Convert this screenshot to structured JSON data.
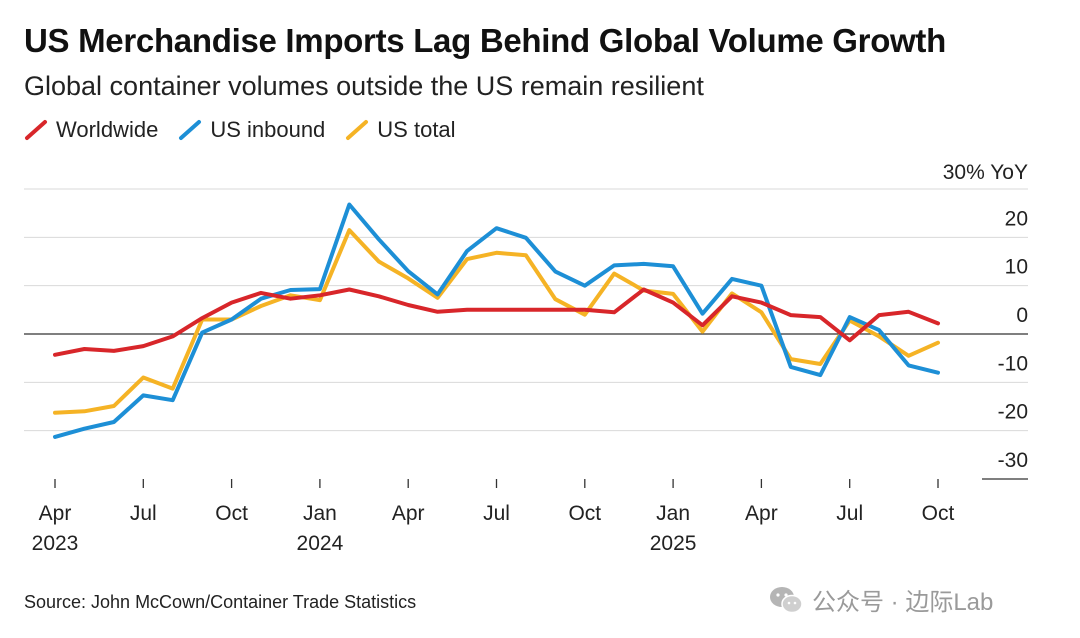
{
  "chart_data": {
    "type": "line",
    "title": "US Merchandise Imports Lag Behind Global Volume Growth",
    "subtitle": "Global container volumes outside the US remain resilient",
    "ylabel": "30% YoY",
    "ylim": [
      -30,
      30
    ],
    "yticks": [
      20,
      10,
      0,
      -10,
      -20,
      -30
    ],
    "ytick_labels": [
      "20",
      "10",
      "0",
      "-10",
      "-20",
      "-30"
    ],
    "x": [
      "Apr 2023",
      "May 2023",
      "Jun 2023",
      "Jul 2023",
      "Aug 2023",
      "Sep 2023",
      "Oct 2023",
      "Nov 2023",
      "Dec 2023",
      "Jan 2024",
      "Feb 2024",
      "Mar 2024",
      "Apr 2024",
      "May 2024",
      "Jun 2024",
      "Jul 2024",
      "Aug 2024",
      "Sep 2024",
      "Oct 2024",
      "Nov 2024",
      "Dec 2024",
      "Jan 2025",
      "Feb 2025",
      "Mar 2025",
      "Apr 2025",
      "May 2025",
      "Jun 2025",
      "Jul 2025",
      "Aug 2025",
      "Sep 2025",
      "Oct 2025"
    ],
    "xtick_labels": [
      {
        "label": "Apr",
        "year": "2023",
        "index": 0
      },
      {
        "label": "Jul",
        "year": "",
        "index": 3
      },
      {
        "label": "Oct",
        "year": "",
        "index": 6
      },
      {
        "label": "Jan",
        "year": "2024",
        "index": 9
      },
      {
        "label": "Apr",
        "year": "",
        "index": 12
      },
      {
        "label": "Jul",
        "year": "",
        "index": 15
      },
      {
        "label": "Oct",
        "year": "",
        "index": 18
      },
      {
        "label": "Jan",
        "year": "2025",
        "index": 21
      },
      {
        "label": "Apr",
        "year": "",
        "index": 24
      },
      {
        "label": "Jul",
        "year": "",
        "index": 27
      },
      {
        "label": "Oct",
        "year": "",
        "index": 30
      }
    ],
    "series": [
      {
        "name": "Worldwide",
        "color": "#d8262a",
        "values": [
          -4.3,
          -3.1,
          -3.5,
          -2.5,
          -0.5,
          3.3,
          6.5,
          8.5,
          7.3,
          8.0,
          9.2,
          7.8,
          6.0,
          4.6,
          5.0,
          5.0,
          5.0,
          5.0,
          5.0,
          4.5,
          9.2,
          6.5,
          1.8,
          7.8,
          6.5,
          3.9,
          3.5,
          -1.3,
          3.9,
          4.6,
          2.2
        ]
      },
      {
        "name": "US inbound",
        "color": "#1d8fd6",
        "values": [
          -21.3,
          -19.6,
          -18.2,
          -12.7,
          -13.7,
          0.3,
          3.0,
          7.3,
          9.1,
          9.3,
          26.8,
          19.6,
          13.0,
          8.2,
          17.2,
          21.9,
          19.9,
          12.9,
          10.0,
          14.2,
          14.5,
          14.0,
          4.2,
          11.4,
          10.0,
          -6.8,
          -8.5,
          3.5,
          0.8,
          -6.5,
          -8.0
        ]
      },
      {
        "name": "US total",
        "color": "#f5b325",
        "values": [
          -16.3,
          -16.0,
          -14.9,
          -9.0,
          -11.3,
          3.0,
          3.0,
          5.8,
          8.0,
          7.0,
          21.5,
          15.0,
          11.5,
          7.5,
          15.5,
          16.8,
          16.3,
          7.2,
          4.0,
          12.5,
          9.0,
          8.3,
          0.5,
          8.4,
          4.5,
          -5.2,
          -6.2,
          2.8,
          -0.5,
          -4.5,
          -1.8
        ]
      }
    ],
    "grid": true,
    "legend_position": "top-left"
  },
  "legend": [
    {
      "label": "Worldwide",
      "color": "#d8262a"
    },
    {
      "label": "US inbound",
      "color": "#1d8fd6"
    },
    {
      "label": "US total",
      "color": "#f5b325"
    }
  ],
  "source": "Source: John McCown/Container Trade Statistics",
  "watermark": {
    "text": "公众号 · 边际Lab",
    "icon": "wechat-icon"
  }
}
